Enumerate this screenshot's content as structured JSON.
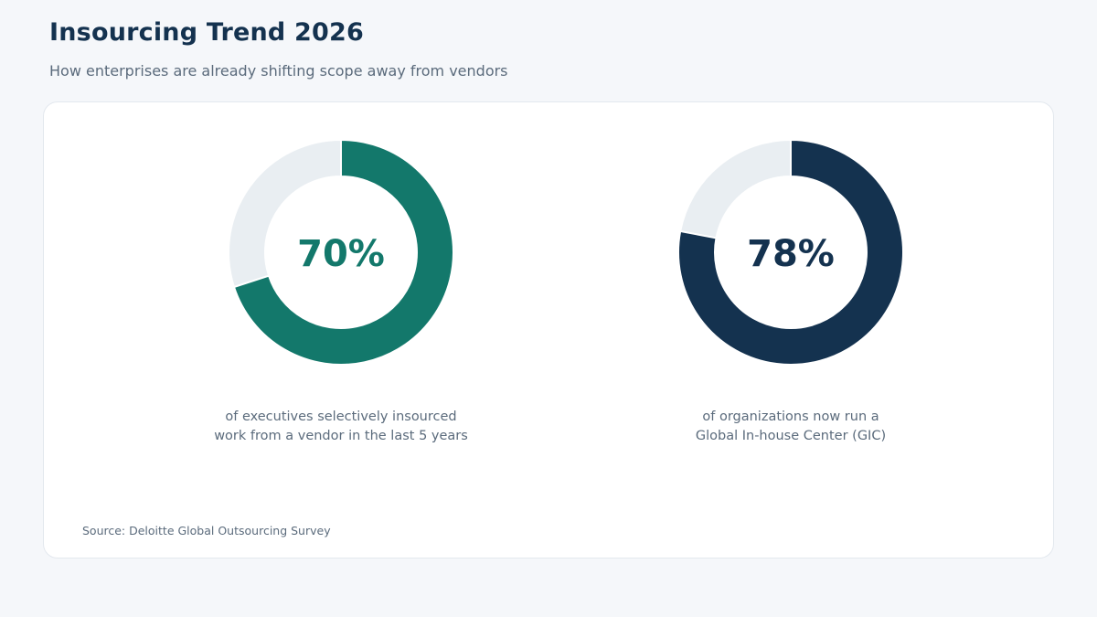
{
  "header": {
    "title": "Insourcing Trend 2026",
    "subtitle": "How enterprises are already shifting scope away from vendors"
  },
  "chart_data": [
    {
      "type": "pie",
      "style": "donut",
      "value_percent": 70,
      "center_label": "70%",
      "caption_lines": [
        "of executives selectively insourced",
        "work from a vendor in the last 5 years"
      ],
      "color": "#13786b",
      "track_color": "#e9eef2"
    },
    {
      "type": "pie",
      "style": "donut",
      "value_percent": 78,
      "center_label": "78%",
      "caption_lines": [
        "of organizations now run a",
        "Global In-house Center (GIC)"
      ],
      "color": "#14324f",
      "track_color": "#e9eef2"
    }
  ],
  "footer": {
    "source": "Source: Deloitte Global Outsourcing Survey"
  }
}
